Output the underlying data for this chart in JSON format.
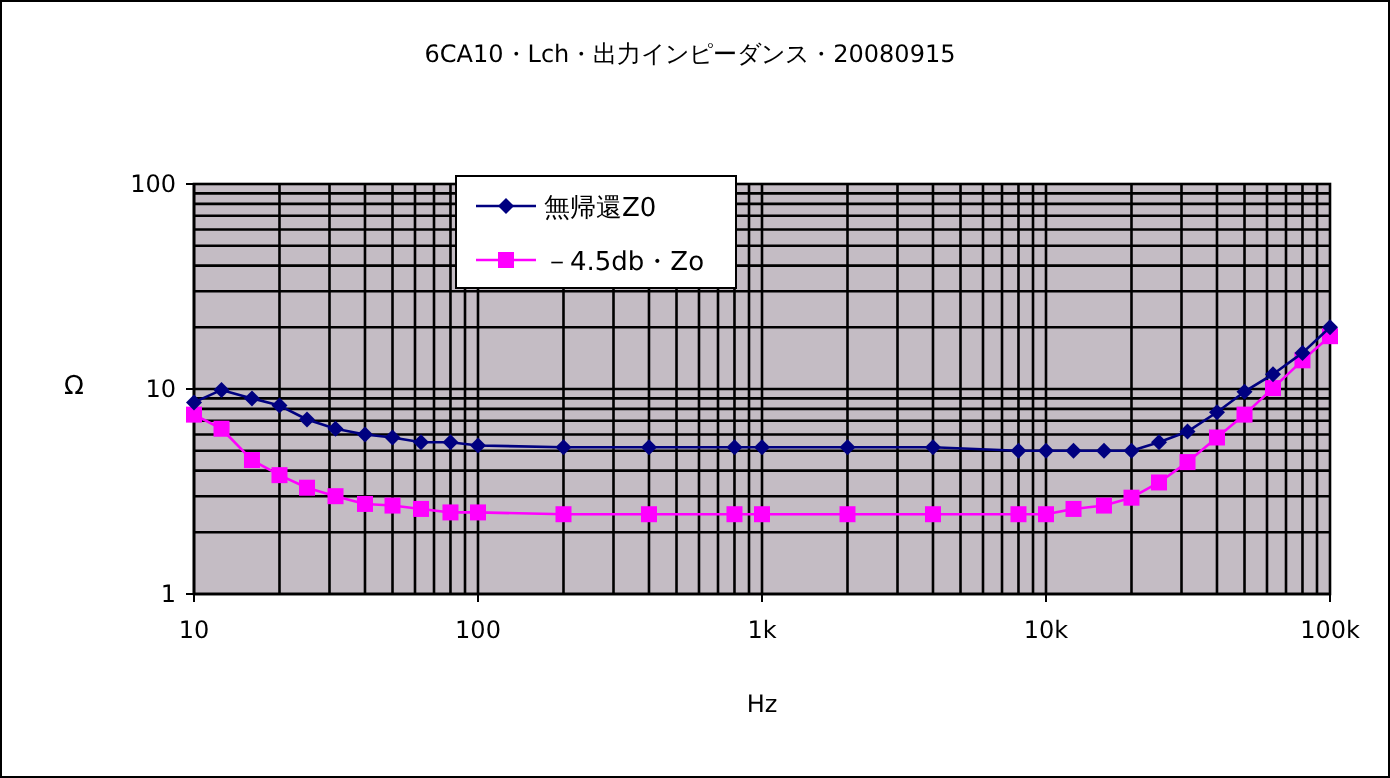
{
  "chart_data": {
    "type": "line",
    "title": "6CA10・Lch・出力インピーダンス・20080915",
    "xlabel": "Hz",
    "ylabel": "Ω",
    "log": "xy",
    "grid": true,
    "legend": "top left",
    "x": [
      10,
      12.5,
      16,
      20,
      25,
      31.5,
      40,
      50,
      63,
      80,
      100,
      200,
      400,
      800,
      1000,
      2000,
      4000,
      8000,
      10000,
      12500,
      16000,
      20000,
      25000,
      31500,
      40000,
      50000,
      63000,
      80000,
      100000
    ],
    "xlim": [
      10,
      100000
    ],
    "xticks": [
      10,
      100,
      {
        "value": 1000,
        "label": "1k"
      },
      {
        "value": 10000,
        "label": "10k"
      },
      {
        "value": 100000,
        "label": "100k"
      }
    ],
    "ylim": [
      1,
      100
    ],
    "yticks": [
      1,
      10,
      100
    ],
    "series": [
      {
        "name": "無帰還Z0",
        "color": "#000080",
        "marker": "diamond",
        "values": [
          8.6,
          9.9,
          9.0,
          8.3,
          7.1,
          6.4,
          6.0,
          5.8,
          5.5,
          5.5,
          5.3,
          5.2,
          5.2,
          5.2,
          5.2,
          5.2,
          5.2,
          5.0,
          5.0,
          5.0,
          5.0,
          5.0,
          5.5,
          6.2,
          7.7,
          9.7,
          11.8,
          15,
          20
        ]
      },
      {
        "name": "－4.5db・Zo",
        "color": "#ff00ff",
        "marker": "square",
        "values": [
          7.5,
          6.4,
          4.5,
          3.8,
          3.3,
          3.0,
          2.75,
          2.7,
          2.6,
          2.5,
          2.5,
          2.45,
          2.45,
          2.45,
          2.45,
          2.45,
          2.45,
          2.45,
          2.45,
          2.6,
          2.7,
          2.95,
          3.5,
          4.4,
          5.8,
          7.5,
          10.1,
          13.8,
          18.1
        ]
      }
    ]
  }
}
